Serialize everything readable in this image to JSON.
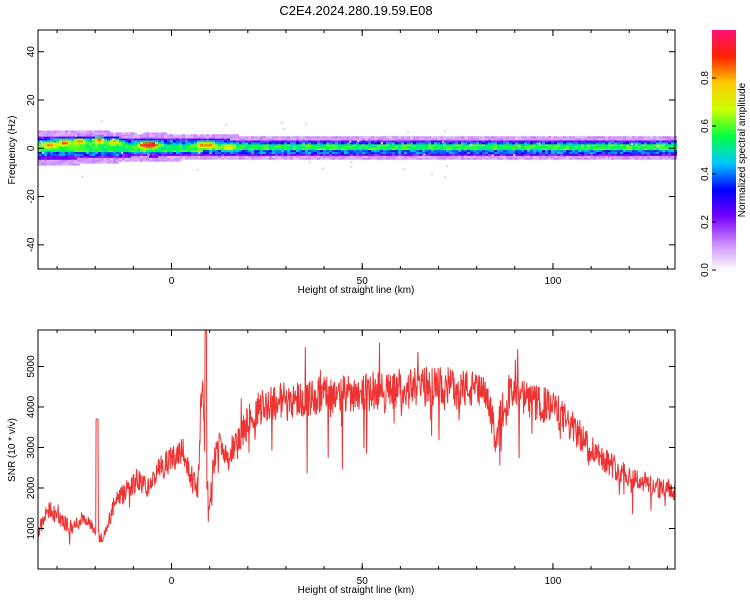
{
  "figure": {
    "title": "C2E4.2024.280.19.59.E08"
  },
  "chart_data": [
    {
      "type": "heatmap",
      "xlabel": "Height of straight line (km)",
      "ylabel": "Frequency (Hz)",
      "xlim": [
        -35,
        132
      ],
      "ylim": [
        -50,
        49
      ],
      "x_ticks": [
        0,
        50,
        100
      ],
      "x_tick_labels": [
        "0",
        "50",
        "100"
      ],
      "y_ticks": [
        -40,
        -20,
        0,
        20,
        40
      ],
      "y_tick_labels": [
        "-40",
        "-20",
        "0",
        "20",
        "40"
      ],
      "grid": false,
      "colorbar": {
        "label": "Normalized spectral amplitude",
        "range": [
          0,
          1
        ],
        "ticks": [
          0,
          0.2,
          0.4,
          0.6,
          0.8
        ],
        "tick_labels": [
          "0.0",
          "0.2",
          "0.4",
          "0.6",
          "0.8"
        ],
        "colors": [
          "#ffffff",
          "#cc88ff",
          "#7700ff",
          "#0000ff",
          "#00c8ff",
          "#00ff44",
          "#c8ff00",
          "#ffcc00",
          "#ff2200",
          "#ff1177"
        ]
      },
      "band": {
        "center_freq": 0.5,
        "x": [
          -35,
          -25,
          -15,
          -8,
          -5,
          0,
          10,
          20,
          40,
          60,
          80,
          100,
          120,
          132
        ],
        "halfwidth": [
          4.5,
          4.5,
          4,
          3.5,
          3.8,
          3.5,
          3.3,
          3,
          3,
          3,
          3,
          3,
          3,
          3
        ]
      },
      "hot_spots": [
        {
          "x": -32,
          "f": 1.5,
          "v": 0.85
        },
        {
          "x": -28,
          "f": 2.5,
          "v": 0.9
        },
        {
          "x": -24,
          "f": 3.0,
          "v": 0.85
        },
        {
          "x": -19,
          "f": 3.5,
          "v": 0.9
        },
        {
          "x": -15,
          "f": 3.0,
          "v": 0.8
        },
        {
          "x": -7,
          "f": 1.5,
          "v": 1.0
        },
        {
          "x": -5,
          "f": 1.5,
          "v": 1.0
        },
        {
          "x": 8,
          "f": 1.5,
          "v": 0.85
        },
        {
          "x": 10,
          "f": 1.5,
          "v": 0.85
        },
        {
          "x": 15,
          "f": 0.5,
          "v": 0.75
        }
      ]
    },
    {
      "type": "line",
      "xlabel": "Height of straight line (km)",
      "ylabel": "SNR (10 * v/v)",
      "xlim": [
        -35,
        132
      ],
      "ylim": [
        0,
        5900
      ],
      "x_ticks": [
        0,
        50,
        100
      ],
      "x_tick_labels": [
        "0",
        "50",
        "100"
      ],
      "y_ticks": [
        1000,
        2000,
        3000,
        4000,
        5000
      ],
      "y_tick_labels": [
        "1000",
        "2000",
        "3000",
        "4000",
        "5000"
      ],
      "grid": false,
      "series": [
        {
          "color": "#ee3333",
          "x": [
            -35,
            -32,
            -29,
            -26,
            -23,
            -20,
            -18,
            -15,
            -12,
            -9,
            -6,
            -3,
            0,
            3,
            5,
            7,
            8,
            9,
            10,
            11,
            13,
            15,
            17,
            20,
            23,
            26,
            30,
            35,
            40,
            45,
            50,
            55,
            60,
            65,
            70,
            75,
            80,
            83,
            85,
            87,
            90,
            95,
            100,
            105,
            110,
            115,
            120,
            125,
            132
          ],
          "y": [
            900,
            1500,
            1200,
            1000,
            1300,
            900,
            700,
            1600,
            1900,
            2200,
            2000,
            2500,
            2700,
            3000,
            2200,
            2000,
            4800,
            2500,
            1400,
            2600,
            3200,
            2700,
            3100,
            3600,
            4000,
            4100,
            4200,
            4200,
            4300,
            4300,
            4400,
            4400,
            4400,
            4500,
            4500,
            4500,
            4400,
            4200,
            3200,
            4200,
            4300,
            4100,
            4000,
            3500,
            3000,
            2600,
            2300,
            2100,
            1900
          ]
        }
      ]
    }
  ]
}
